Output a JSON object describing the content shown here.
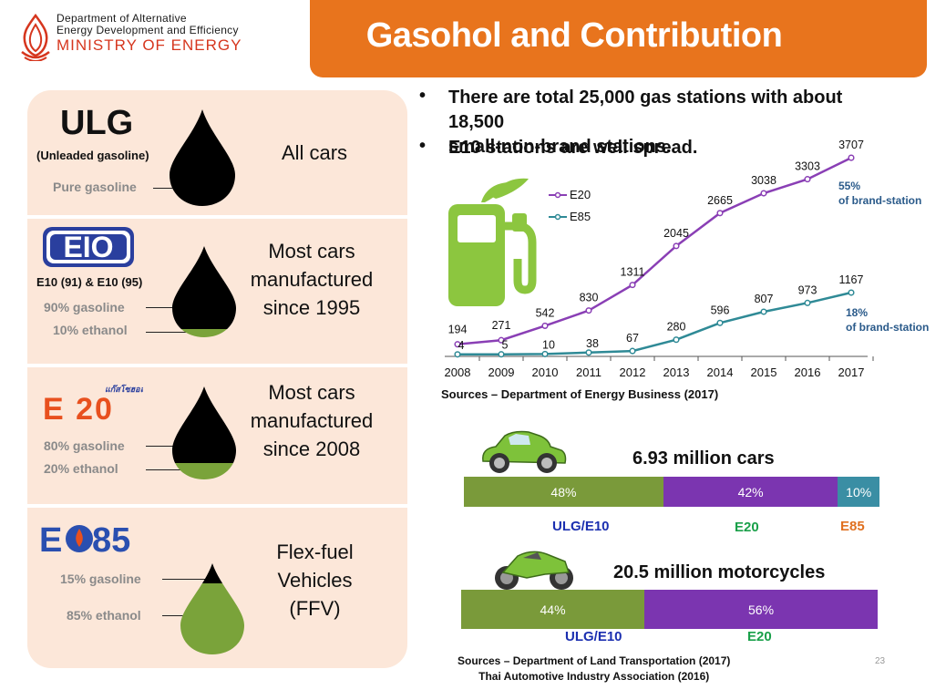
{
  "header": {
    "org_line1": "Department of Alternative",
    "org_line2": "Energy Development and Efficiency",
    "ministry": "MINISTRY OF ENERGY",
    "title": "Gasohol and Contribution"
  },
  "fuels": [
    {
      "name": "ULG",
      "subtitle": "(Unleaded gasoline)",
      "composition": [
        "Pure gasoline"
      ],
      "desc": [
        "All cars"
      ]
    },
    {
      "name": "E10",
      "subtitle": "E10 (91) & E10 (95)",
      "composition": [
        "90% gasoline",
        "10% ethanol"
      ],
      "desc": [
        "Most cars",
        "manufactured",
        "since 1995"
      ]
    },
    {
      "name": "E20",
      "subtitle": "แก๊สโซฮอล์",
      "composition": [
        "80% gasoline",
        "20% ethanol"
      ],
      "desc": [
        "Most cars",
        "manufactured",
        "since 2008"
      ]
    },
    {
      "name": "E85",
      "subtitle": "",
      "composition": [
        "15% gasoline",
        "85% ethanol"
      ],
      "desc": [
        "Flex-fuel",
        "Vehicles",
        "(FFV)"
      ]
    }
  ],
  "bullets": [
    "There are total 25,000 gas stations with about 18,500",
    "small-non-brand stations.",
    "E10 stations are well spread."
  ],
  "chart_data": {
    "type": "line",
    "x": [
      "2008",
      "2009",
      "2010",
      "2011",
      "2012",
      "2013",
      "2014",
      "2015",
      "2016",
      "2017"
    ],
    "series": [
      {
        "name": "E20",
        "values": [
          194,
          271,
          542,
          830,
          1311,
          2045,
          2665,
          3038,
          3303,
          3707
        ],
        "color": "#8a3fb5"
      },
      {
        "name": "E85",
        "values": [
          4,
          5,
          10,
          38,
          67,
          280,
          596,
          807,
          973,
          1167
        ],
        "color": "#2f8a96"
      }
    ],
    "ylim": [
      0,
      4000
    ],
    "grid": false,
    "legend": "top-left",
    "annotations": [
      {
        "line1": "55%",
        "line2": "of brand-station"
      },
      {
        "line1": "18%",
        "line2": "of brand-station"
      }
    ],
    "source": "Sources – Department of Energy Business (2017)"
  },
  "vehicles": {
    "cars": {
      "title": "6.93 million cars",
      "segments": [
        {
          "label": "48%",
          "value": 48,
          "color": "#7a9a3a"
        },
        {
          "label": "42%",
          "value": 42,
          "color": "#7b35b0"
        },
        {
          "label": "10%",
          "value": 10,
          "color": "#3a8ea4"
        }
      ],
      "categories": [
        {
          "name": "ULG/E10",
          "color": "#1b2fb0"
        },
        {
          "name": "E20",
          "color": "#1aa04a"
        },
        {
          "name": "E85",
          "color": "#e07020"
        }
      ]
    },
    "motorcycles": {
      "title": "20.5 million motorcycles",
      "segments": [
        {
          "label": "44%",
          "value": 44,
          "color": "#7a9a3a"
        },
        {
          "label": "56%",
          "value": 56,
          "color": "#7b35b0"
        }
      ],
      "categories": [
        {
          "name": "ULG/E10",
          "color": "#1b2fb0"
        },
        {
          "name": "E20",
          "color": "#1aa04a"
        }
      ]
    },
    "source_line1": "Sources – Department of Land Transportation (2017)",
    "source_line2": "Thai Automotive Industry Association (2016)"
  },
  "page_number": "23"
}
